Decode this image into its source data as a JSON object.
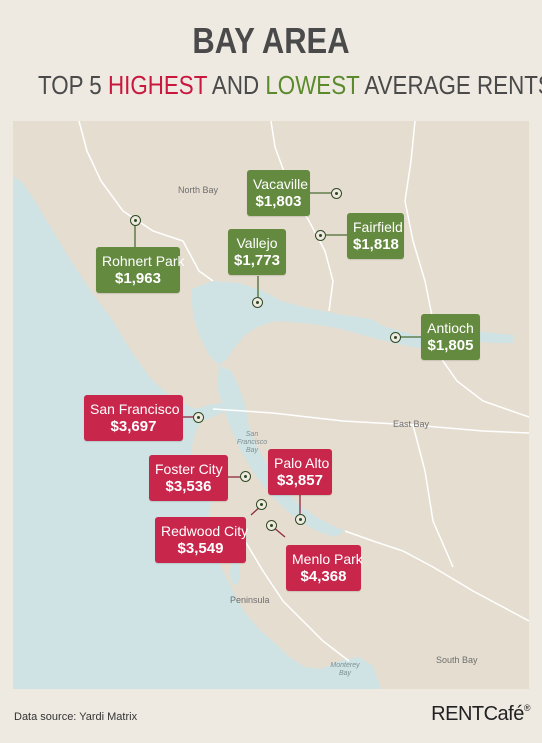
{
  "header": {
    "title": "BAY AREA",
    "subtitle_prefix": "TOP 5 ",
    "subtitle_high": "HIGHEST",
    "subtitle_and": " AND ",
    "subtitle_low": "LOWEST",
    "subtitle_suffix": " AVERAGE RENTS",
    "color_high": "#c9173e",
    "color_low": "#5b8a2c"
  },
  "map": {
    "land_color": "#e5ddd0",
    "water_color": "#cfe3e4",
    "regions": {
      "north_bay": "North Bay",
      "east_bay": "East Bay",
      "peninsula": "Peninsula",
      "south_bay": "South Bay"
    },
    "water_labels": {
      "sf_bay": [
        "San",
        "Francisco",
        "Bay"
      ],
      "monterey_bay": [
        "Monterey",
        "Bay"
      ]
    }
  },
  "lowest_rents": [
    {
      "city": "Vacaville",
      "rent": "$1,803"
    },
    {
      "city": "Fairfield",
      "rent": "$1,818"
    },
    {
      "city": "Rohnert Park",
      "rent": "$1,963"
    },
    {
      "city": "Vallejo",
      "rent": "$1,773"
    },
    {
      "city": "Antioch",
      "rent": "$1,805"
    }
  ],
  "highest_rents": [
    {
      "city": "San Francisco",
      "rent": "$3,697"
    },
    {
      "city": "Foster City",
      "rent": "$3,536"
    },
    {
      "city": "Palo Alto",
      "rent": "$3,857"
    },
    {
      "city": "Redwood City",
      "rent": "$3,549"
    },
    {
      "city": "Menlo Park",
      "rent": "$4,368"
    }
  ],
  "footer": {
    "source": "Data source: Yardi Matrix",
    "brand": "RENTCafé",
    "brand_mark": "®"
  }
}
